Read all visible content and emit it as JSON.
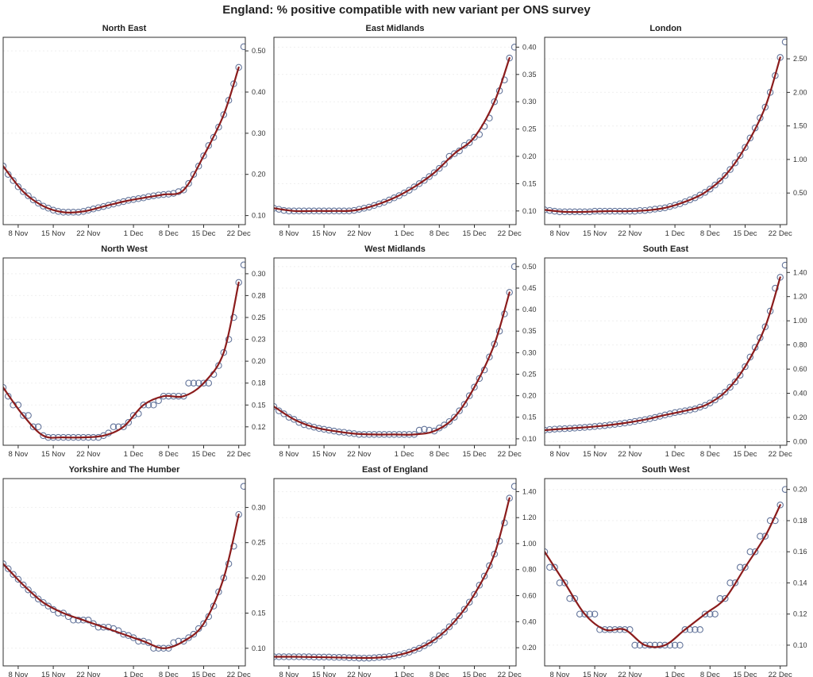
{
  "page_title": "England: % positive compatible with new variant per ONS survey",
  "colors": {
    "fit_line": "#8b1c1c",
    "point_outline": "#64759b",
    "axis": "#2f2f2f",
    "text": "#222222",
    "tick_text": "#333333",
    "grid": "#efefef",
    "background": "#ffffff"
  },
  "chart_data": {
    "type": "scatter",
    "title": "England: % positive compatible with new variant per ONS survey",
    "layout": "3x3 small multiples, one panel per region, smooth dark-red fit line through open-circle daily points, y axis on right",
    "x_axis": {
      "tick_labels": [
        "8 Nov",
        "15 Nov",
        "22 Nov",
        "1 Dec",
        "8 Dec",
        "15 Dec",
        "22 Dec"
      ],
      "tick_day_offsets": [
        3,
        10,
        17,
        26,
        33,
        40,
        47
      ],
      "n_points": 49
    },
    "panels": [
      {
        "region": "North East",
        "y_tick_labels": [
          "0.10",
          "0.20",
          "0.30",
          "0.40",
          "0.50"
        ],
        "y_tick_values": [
          0.1,
          0.2,
          0.3,
          0.4,
          0.5
        ],
        "ylim": [
          0.078,
          0.533
        ],
        "points": [
          0.22,
          0.2,
          0.185,
          0.17,
          0.158,
          0.148,
          0.138,
          0.13,
          0.123,
          0.118,
          0.113,
          0.11,
          0.108,
          0.108,
          0.108,
          0.108,
          0.11,
          0.113,
          0.116,
          0.119,
          0.122,
          0.125,
          0.128,
          0.131,
          0.134,
          0.137,
          0.139,
          0.141,
          0.143,
          0.146,
          0.148,
          0.15,
          0.151,
          0.152,
          0.154,
          0.158,
          0.162,
          0.178,
          0.2,
          0.22,
          0.245,
          0.27,
          0.29,
          0.315,
          0.345,
          0.38,
          0.42,
          0.46,
          0.51
        ]
      },
      {
        "region": "East Midlands",
        "y_tick_labels": [
          "0.10",
          "0.15",
          "0.20",
          "0.25",
          "0.30",
          "0.35",
          "0.40"
        ],
        "y_tick_values": [
          0.1,
          0.15,
          0.2,
          0.25,
          0.3,
          0.35,
          0.4
        ],
        "ylim": [
          0.075,
          0.418
        ],
        "points": [
          0.105,
          0.103,
          0.101,
          0.1,
          0.1,
          0.1,
          0.1,
          0.1,
          0.1,
          0.1,
          0.1,
          0.1,
          0.1,
          0.1,
          0.1,
          0.1,
          0.101,
          0.103,
          0.105,
          0.107,
          0.11,
          0.113,
          0.116,
          0.12,
          0.124,
          0.128,
          0.133,
          0.138,
          0.144,
          0.15,
          0.156,
          0.163,
          0.17,
          0.178,
          0.186,
          0.2,
          0.205,
          0.21,
          0.22,
          0.225,
          0.235,
          0.24,
          0.255,
          0.27,
          0.3,
          0.32,
          0.34,
          0.38,
          0.4
        ]
      },
      {
        "region": "London",
        "y_tick_labels": [
          "0.50",
          "1.00",
          "1.50",
          "2.00",
          "2.50"
        ],
        "y_tick_values": [
          0.5,
          1.0,
          1.5,
          2.0,
          2.5
        ],
        "ylim": [
          0.03,
          2.82
        ],
        "points": [
          0.25,
          0.24,
          0.23,
          0.22,
          0.22,
          0.22,
          0.22,
          0.22,
          0.22,
          0.22,
          0.23,
          0.23,
          0.23,
          0.23,
          0.23,
          0.23,
          0.23,
          0.23,
          0.23,
          0.24,
          0.24,
          0.25,
          0.26,
          0.27,
          0.28,
          0.3,
          0.32,
          0.34,
          0.37,
          0.4,
          0.43,
          0.47,
          0.51,
          0.56,
          0.62,
          0.68,
          0.76,
          0.85,
          0.95,
          1.06,
          1.18,
          1.32,
          1.47,
          1.62,
          1.78,
          2.0,
          2.25,
          2.52,
          2.75
        ]
      },
      {
        "region": "North West",
        "y_tick_labels": [
          "0.12",
          "0.15",
          "0.18",
          "0.20",
          "0.23",
          "0.25",
          "0.28",
          "0.30"
        ],
        "y_tick_values": [
          0.125,
          0.15,
          0.175,
          0.2,
          0.225,
          0.25,
          0.275,
          0.3
        ],
        "ylim": [
          0.104,
          0.318
        ],
        "points": [
          0.17,
          0.16,
          0.15,
          0.15,
          0.138,
          0.138,
          0.125,
          0.125,
          0.115,
          0.113,
          0.113,
          0.113,
          0.113,
          0.113,
          0.113,
          0.113,
          0.113,
          0.113,
          0.113,
          0.113,
          0.115,
          0.118,
          0.125,
          0.125,
          0.125,
          0.13,
          0.138,
          0.14,
          0.15,
          0.15,
          0.15,
          0.155,
          0.16,
          0.16,
          0.16,
          0.16,
          0.16,
          0.175,
          0.175,
          0.175,
          0.175,
          0.175,
          0.185,
          0.195,
          0.21,
          0.225,
          0.25,
          0.29,
          0.31
        ]
      },
      {
        "region": "West Midlands",
        "y_tick_labels": [
          "0.10",
          "0.15",
          "0.20",
          "0.25",
          "0.30",
          "0.35",
          "0.40",
          "0.45",
          "0.50"
        ],
        "y_tick_values": [
          0.1,
          0.15,
          0.2,
          0.25,
          0.3,
          0.35,
          0.4,
          0.45,
          0.5
        ],
        "ylim": [
          0.085,
          0.52
        ],
        "points": [
          0.175,
          0.165,
          0.158,
          0.15,
          0.145,
          0.138,
          0.133,
          0.13,
          0.127,
          0.124,
          0.122,
          0.12,
          0.118,
          0.116,
          0.115,
          0.113,
          0.112,
          0.11,
          0.11,
          0.11,
          0.11,
          0.11,
          0.11,
          0.11,
          0.11,
          0.11,
          0.11,
          0.11,
          0.11,
          0.12,
          0.122,
          0.12,
          0.118,
          0.125,
          0.132,
          0.14,
          0.15,
          0.165,
          0.18,
          0.2,
          0.22,
          0.24,
          0.26,
          0.29,
          0.32,
          0.35,
          0.39,
          0.44,
          0.5
        ]
      },
      {
        "region": "South East",
        "y_tick_labels": [
          "0.00",
          "0.20",
          "0.40",
          "0.60",
          "0.80",
          "1.00",
          "1.20",
          "1.40"
        ],
        "y_tick_values": [
          0.0,
          0.2,
          0.4,
          0.6,
          0.8,
          1.0,
          1.2,
          1.4
        ],
        "ylim": [
          -0.03,
          1.52
        ],
        "points": [
          0.095,
          0.1,
          0.103,
          0.105,
          0.107,
          0.11,
          0.112,
          0.115,
          0.118,
          0.121,
          0.125,
          0.129,
          0.133,
          0.138,
          0.143,
          0.148,
          0.154,
          0.16,
          0.167,
          0.174,
          0.182,
          0.19,
          0.2,
          0.21,
          0.22,
          0.23,
          0.24,
          0.248,
          0.255,
          0.262,
          0.27,
          0.285,
          0.3,
          0.32,
          0.345,
          0.375,
          0.41,
          0.45,
          0.495,
          0.55,
          0.62,
          0.7,
          0.78,
          0.86,
          0.95,
          1.08,
          1.27,
          1.36,
          1.46
        ]
      },
      {
        "region": "Yorkshire and The Humber",
        "y_tick_labels": [
          "0.10",
          "0.15",
          "0.20",
          "0.25",
          "0.30"
        ],
        "y_tick_values": [
          0.1,
          0.15,
          0.2,
          0.25,
          0.3
        ],
        "ylim": [
          0.075,
          0.341
        ],
        "points": [
          0.22,
          0.213,
          0.205,
          0.198,
          0.19,
          0.183,
          0.176,
          0.17,
          0.165,
          0.16,
          0.155,
          0.15,
          0.15,
          0.145,
          0.14,
          0.14,
          0.14,
          0.14,
          0.135,
          0.13,
          0.13,
          0.13,
          0.128,
          0.125,
          0.12,
          0.118,
          0.115,
          0.11,
          0.11,
          0.108,
          0.1,
          0.1,
          0.1,
          0.1,
          0.108,
          0.11,
          0.11,
          0.115,
          0.12,
          0.128,
          0.135,
          0.145,
          0.16,
          0.18,
          0.2,
          0.22,
          0.245,
          0.29,
          0.33
        ]
      },
      {
        "region": "East of England",
        "y_tick_labels": [
          "0.20",
          "0.40",
          "0.60",
          "0.80",
          "1.00",
          "1.20",
          "1.40"
        ],
        "y_tick_values": [
          0.2,
          0.4,
          0.6,
          0.8,
          1.0,
          1.2,
          1.4
        ],
        "ylim": [
          0.06,
          1.5
        ],
        "points": [
          0.13,
          0.13,
          0.13,
          0.13,
          0.13,
          0.13,
          0.13,
          0.13,
          0.128,
          0.128,
          0.128,
          0.128,
          0.125,
          0.125,
          0.125,
          0.122,
          0.122,
          0.12,
          0.12,
          0.12,
          0.122,
          0.125,
          0.128,
          0.132,
          0.137,
          0.145,
          0.155,
          0.165,
          0.18,
          0.195,
          0.215,
          0.235,
          0.26,
          0.29,
          0.32,
          0.36,
          0.4,
          0.445,
          0.495,
          0.55,
          0.61,
          0.68,
          0.75,
          0.83,
          0.92,
          1.02,
          1.16,
          1.35,
          1.44
        ]
      },
      {
        "region": "South West",
        "y_tick_labels": [
          "0.10",
          "0.12",
          "0.14",
          "0.16",
          "0.18",
          "0.20"
        ],
        "y_tick_values": [
          0.1,
          0.12,
          0.14,
          0.16,
          0.18,
          0.2
        ],
        "ylim": [
          0.0867,
          0.207
        ],
        "points": [
          0.16,
          0.15,
          0.15,
          0.14,
          0.14,
          0.13,
          0.13,
          0.12,
          0.12,
          0.12,
          0.12,
          0.11,
          0.11,
          0.11,
          0.11,
          0.11,
          0.11,
          0.11,
          0.1,
          0.1,
          0.1,
          0.1,
          0.1,
          0.1,
          0.1,
          0.1,
          0.1,
          0.1,
          0.11,
          0.11,
          0.11,
          0.11,
          0.12,
          0.12,
          0.12,
          0.13,
          0.13,
          0.14,
          0.14,
          0.15,
          0.15,
          0.16,
          0.16,
          0.17,
          0.17,
          0.18,
          0.18,
          0.19,
          0.2
        ]
      }
    ]
  }
}
